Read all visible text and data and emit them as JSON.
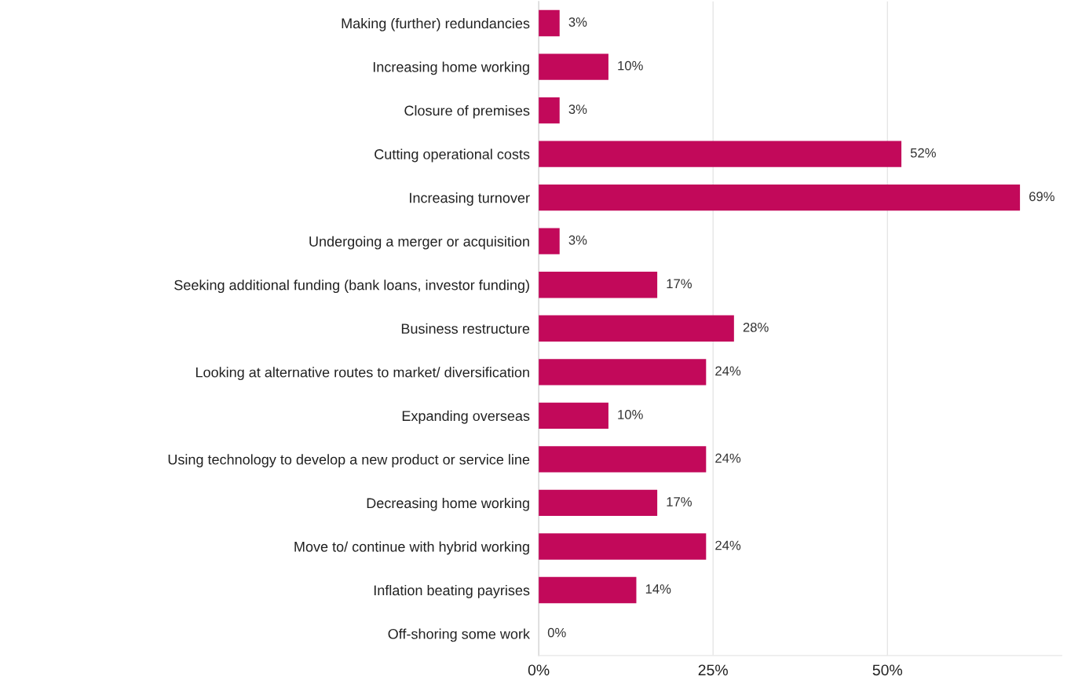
{
  "chart_data": {
    "type": "bar",
    "orientation": "horizontal",
    "categories": [
      "Making (further) redundancies",
      "Increasing home working",
      "Closure of premises",
      "Cutting operational costs",
      "Increasing turnover",
      "Undergoing a merger or acquisition",
      "Seeking additional funding (bank loans, investor funding)",
      "Business restructure",
      "Looking at alternative routes to market/ diversification",
      "Expanding overseas",
      "Using technology to develop a new product or service line",
      "Decreasing home working",
      "Move to/ continue with hybrid working",
      "Inflation beating payrises",
      "Off-shoring some work"
    ],
    "values": [
      3,
      10,
      3,
      52,
      69,
      3,
      17,
      28,
      24,
      10,
      24,
      17,
      24,
      14,
      0
    ],
    "value_labels": [
      "3%",
      "10%",
      "3%",
      "52%",
      "69%",
      "3%",
      "17%",
      "28%",
      "24%",
      "10%",
      "24%",
      "17%",
      "24%",
      "14%",
      "0%"
    ],
    "color": "#c2095a",
    "xlim": [
      0,
      75
    ],
    "xticks": [
      {
        "value": 0,
        "label": "0%"
      },
      {
        "value": 25,
        "label": "25%"
      },
      {
        "value": 50,
        "label": "50%"
      }
    ],
    "grid": "x"
  }
}
